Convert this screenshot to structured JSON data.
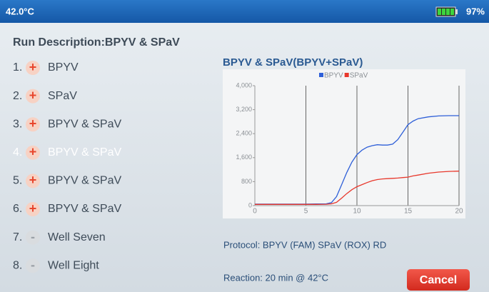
{
  "status_bar": {
    "temperature": "42.0°C",
    "battery": "97%"
  },
  "run_description": "Run Description:BPYV & SPaV",
  "wells": [
    {
      "number": "1.",
      "sign": "+",
      "label": "BPYV"
    },
    {
      "number": "2.",
      "sign": "+",
      "label": "SPaV"
    },
    {
      "number": "3.",
      "sign": "+",
      "label": "BPYV & SPaV"
    },
    {
      "number": "4.",
      "sign": "+",
      "label": "BPYV & SPaV",
      "selected": true
    },
    {
      "number": "5.",
      "sign": "+",
      "label": "BPYV & SPaV"
    },
    {
      "number": "6.",
      "sign": "+",
      "label": "BPYV & SPaV"
    },
    {
      "number": "7.",
      "sign": "-",
      "label": "Well Seven"
    },
    {
      "number": "8.",
      "sign": "-",
      "label": "Well Eight"
    }
  ],
  "chart_data": {
    "type": "line",
    "title": "BPYV & SPaV(BPYV+SPaV)",
    "x": [
      0,
      1,
      2,
      3,
      4,
      5,
      6,
      7,
      7.5,
      8,
      8.5,
      9,
      9.5,
      10,
      10.5,
      11,
      11.5,
      12,
      12.5,
      13,
      13.5,
      14,
      14.5,
      15,
      15.5,
      16,
      17,
      18,
      19,
      20
    ],
    "series": [
      {
        "name": "BPYV",
        "color": "#2e5fd8",
        "values": [
          50,
          50,
          50,
          50,
          50,
          50,
          55,
          60,
          100,
          300,
          700,
          1100,
          1450,
          1700,
          1850,
          1950,
          2000,
          2030,
          2020,
          2020,
          2050,
          2200,
          2450,
          2700,
          2820,
          2900,
          2960,
          2990,
          3000,
          3000
        ]
      },
      {
        "name": "SPaV",
        "color": "#e8382c",
        "values": [
          40,
          40,
          40,
          40,
          40,
          40,
          40,
          45,
          60,
          110,
          250,
          400,
          530,
          630,
          700,
          770,
          830,
          870,
          890,
          900,
          910,
          920,
          935,
          950,
          990,
          1020,
          1080,
          1120,
          1140,
          1150
        ]
      }
    ],
    "xlim": [
      0,
      20
    ],
    "xticks": [
      0,
      5,
      10,
      15,
      20
    ],
    "ylim": [
      0,
      4000
    ],
    "yticks": [
      0,
      {
        "value": 800,
        "label": "800"
      },
      {
        "value": 1600,
        "label": "1,600"
      },
      {
        "value": 2400,
        "label": "2,400"
      },
      {
        "value": 3200,
        "label": "3,200"
      },
      {
        "value": 4000,
        "label": "4,000"
      }
    ],
    "grid": "x"
  },
  "protocol": "Protocol: BPYV (FAM)  SPaV (ROX) RD",
  "reaction": "Reaction: 20 min @ 42°C",
  "cancel_button": "Cancel"
}
